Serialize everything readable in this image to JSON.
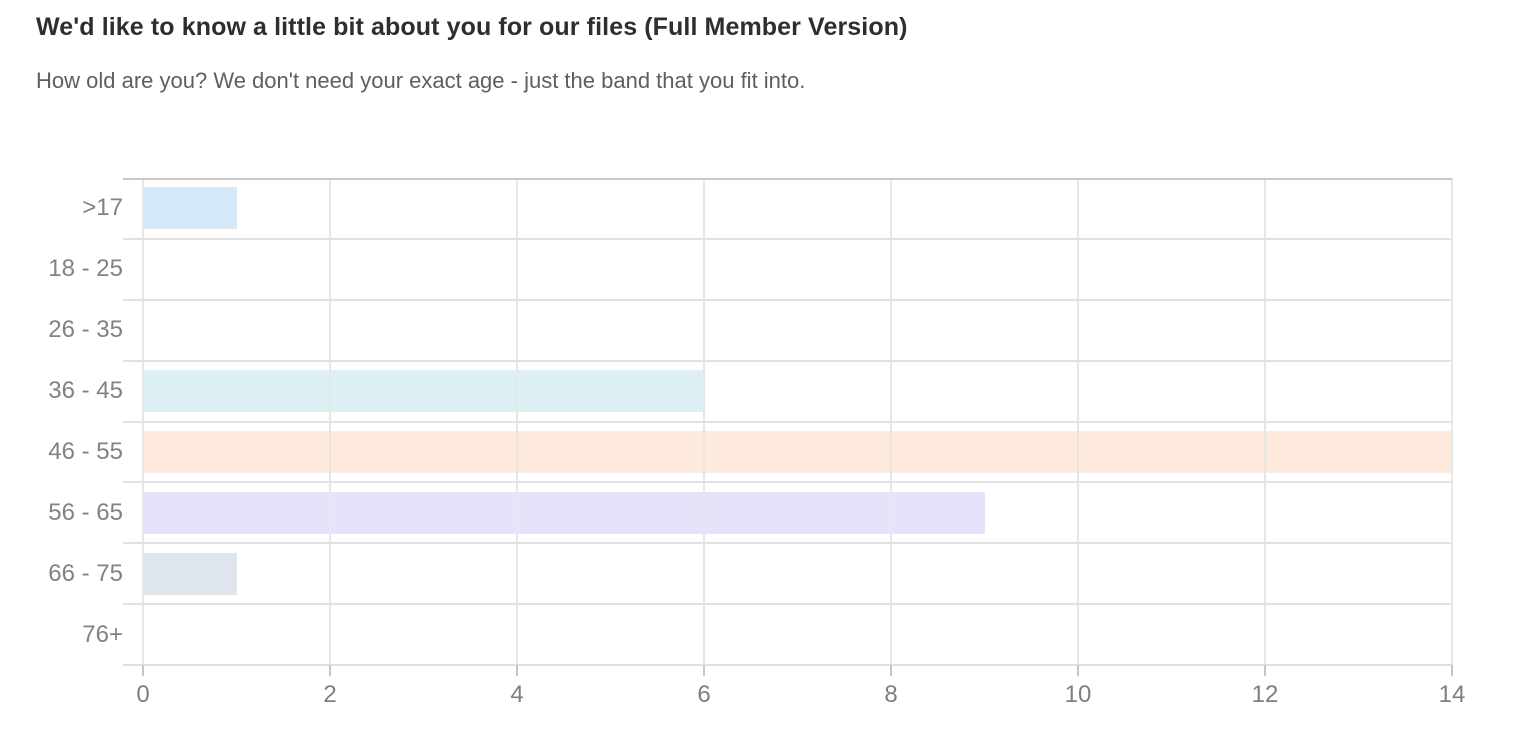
{
  "page": {
    "title": "We'd like to know a little bit about you for our files (Full Member Version)",
    "subtitle": "How old are you? We don't need your exact age - just the band that you fit into."
  },
  "chart_data": {
    "type": "bar",
    "orientation": "horizontal",
    "title": "We'd like to know a little bit about you for our files (Full Member Version)",
    "subtitle": "How old are you? We don't need your exact age - just the band that you fit into.",
    "categories": [
      ">17",
      "18 - 25",
      "26 - 35",
      "36 - 45",
      "46 - 55",
      "56 - 65",
      "66 - 75",
      "76+"
    ],
    "values": [
      1,
      0,
      0,
      6,
      14,
      9,
      1,
      0
    ],
    "bar_colors": [
      "#d6e9f8",
      "",
      "",
      "#dceff2",
      "#fdeadc",
      "#e7e1fa",
      "#dfe5ec",
      ""
    ],
    "xlabel": "",
    "ylabel": "",
    "xlim": [
      0,
      14
    ],
    "xticks": [
      "0",
      "2",
      "4",
      "6",
      "8",
      "10",
      "12",
      "14"
    ],
    "xtick_values": [
      0,
      2,
      4,
      6,
      8,
      10,
      12,
      14
    ],
    "grid": true,
    "legend_position": "none",
    "colors": {
      "title_text": "#2e2e2e",
      "subtitle_text": "#5e5e5e",
      "category_label": "#828282",
      "tick_label": "#7f7f7f",
      "gridline": "#e7e7e7",
      "plot_top_border": "#c8c8c8",
      "row_divider": "#e2e2e2",
      "axis_line": "#e0e0e0",
      "tick_mark": "#c6c6c6"
    }
  }
}
